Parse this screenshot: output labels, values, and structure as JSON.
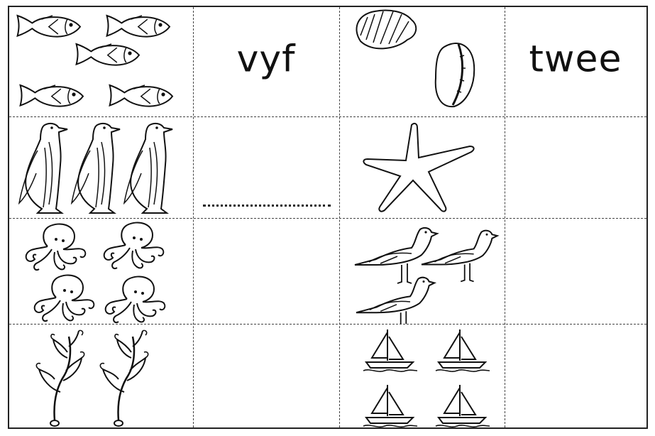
{
  "rows": [
    {
      "left": {
        "picture": "fish-icon",
        "count": 5,
        "answer": "vyf"
      },
      "right": {
        "picture": "seashell-icon",
        "count": 2,
        "answer": "twee"
      }
    },
    {
      "left": {
        "picture": "penguin-icon",
        "count": 3,
        "answer": "",
        "answer_line": true
      },
      "right": {
        "picture": "starfish-icon",
        "count": 1,
        "answer": ""
      }
    },
    {
      "left": {
        "picture": "octopus-icon",
        "count": 4,
        "answer": ""
      },
      "right": {
        "picture": "seagull-icon",
        "count": 3,
        "answer": ""
      }
    },
    {
      "left": {
        "picture": "seaweed-icon",
        "count": 2,
        "answer": ""
      },
      "right": {
        "picture": "sailboat-icon",
        "count": 4,
        "answer": ""
      }
    }
  ],
  "colors": {
    "ink": "#111111",
    "paper": "#ffffff"
  }
}
